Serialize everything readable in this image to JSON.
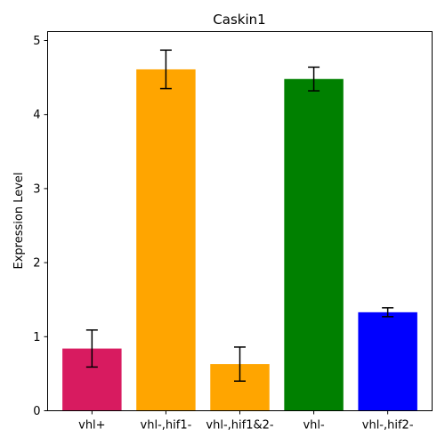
{
  "chart_data": {
    "type": "bar",
    "title": "Caskin1",
    "xlabel": "",
    "ylabel": "Expression Level",
    "categories": [
      "vhl+",
      "vhl-,hif1-",
      "vhl-,hif1&2-",
      "vhl-",
      "vhl-,hif2-"
    ],
    "values": [
      0.84,
      4.61,
      0.63,
      4.48,
      1.33
    ],
    "errors": [
      0.25,
      0.26,
      0.23,
      0.16,
      0.06
    ],
    "colors": [
      "#d81b60",
      "#ffa500",
      "#ffa500",
      "#008000",
      "#0000ff"
    ],
    "ylim": [
      0,
      5.12
    ],
    "yticks": [
      0,
      1,
      2,
      3,
      4,
      5
    ],
    "grid": false
  }
}
